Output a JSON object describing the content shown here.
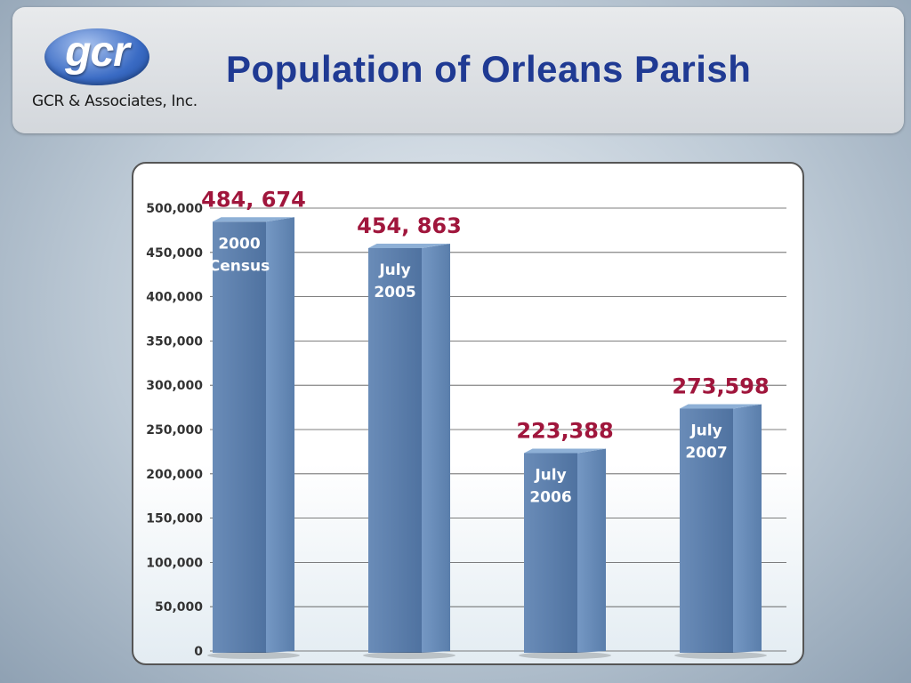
{
  "header": {
    "logo_text": "gcr",
    "company": "GCR & Associates, Inc.",
    "title": "Population of Orleans Parish"
  },
  "colors": {
    "title": "#1f3a93",
    "bar_front": "#5b7fad",
    "value_label": "#a0163c",
    "bar_label": "#ffffff"
  },
  "chart_data": {
    "type": "bar",
    "categories": [
      "2000 Census",
      "July 2005",
      "July 2006",
      "July 2007"
    ],
    "bar_label_lines": [
      [
        "2000",
        "Census"
      ],
      [
        "July",
        "2005"
      ],
      [
        "July",
        "2006"
      ],
      [
        "July",
        "2007"
      ]
    ],
    "values": [
      484674,
      454863,
      223388,
      273598
    ],
    "value_labels": [
      "484, 674",
      "454, 863",
      "223,388",
      "273,598"
    ],
    "ylim": [
      0,
      500000
    ],
    "yticks": [
      0,
      50000,
      100000,
      150000,
      200000,
      250000,
      300000,
      350000,
      400000,
      450000,
      500000
    ],
    "ytick_labels": [
      "0",
      "50,000",
      "100,000",
      "150,000",
      "200,000",
      "250,000",
      "300,000",
      "350,000",
      "400,000",
      "450,000",
      "500,000"
    ],
    "grid": true,
    "style": "3d"
  }
}
